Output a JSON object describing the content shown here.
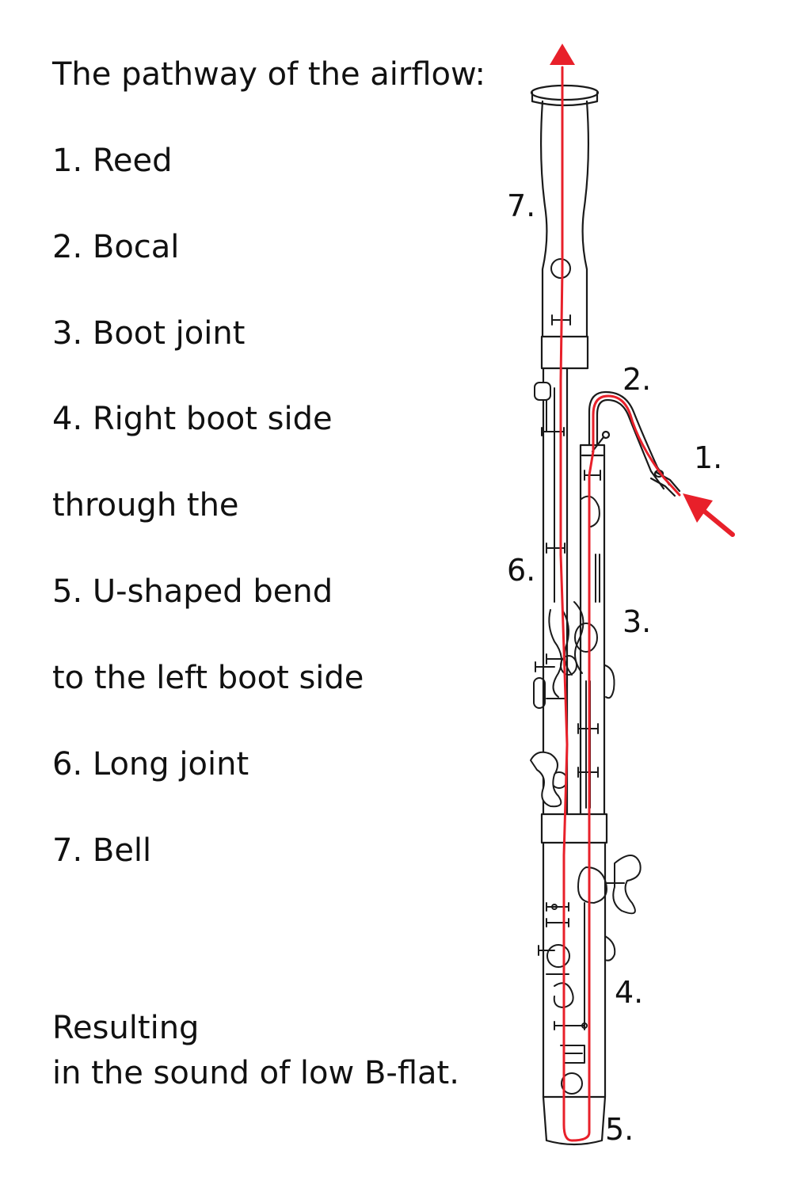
{
  "heading": "The pathway of the airflow:",
  "steps": [
    "1. Reed",
    "2. Bocal",
    "3. Boot joint",
    "4. Right boot side",
    "through the",
    "5. U-shaped bend",
    "to the left boot side",
    "6. Long joint",
    "7. Bell"
  ],
  "result": {
    "line1": "Resulting",
    "line2": "in the sound of low B-flat."
  },
  "diagram_labels": {
    "reed": "1.",
    "bocal": "2.",
    "boot_joint": "3.",
    "right_boot_side": "4.",
    "u_bend": "5.",
    "long_joint": "6.",
    "bell": "7."
  },
  "colors": {
    "airflow": "#e8202a",
    "outline": "#1a1a1a"
  }
}
